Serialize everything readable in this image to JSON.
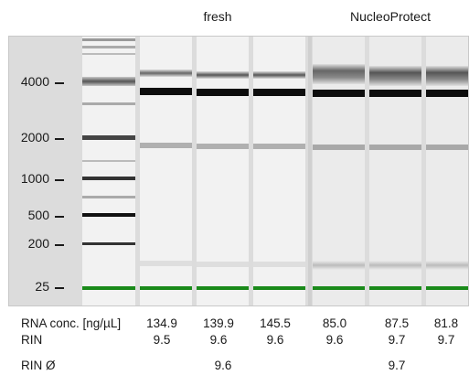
{
  "groups": [
    {
      "label": "fresh"
    },
    {
      "label": "NucleoProtect"
    }
  ],
  "ladder": {
    "ticks": [
      "4000",
      "2000",
      "1000",
      "500",
      "200",
      "25"
    ]
  },
  "colors": {
    "marker": "#1a8a1a",
    "band": "#111111",
    "gel_bg": "#dcdcdc"
  },
  "rows": {
    "rna_conc_label": "RNA conc. [ng/µL]",
    "rin_label": "RIN",
    "rin_avg_label": "RIN Ø",
    "samples": [
      {
        "conc": "134.9",
        "rin": "9.5"
      },
      {
        "conc": "139.9",
        "rin": "9.6"
      },
      {
        "conc": "145.5",
        "rin": "9.6"
      },
      {
        "conc": "85.0",
        "rin": "9.6"
      },
      {
        "conc": "87.5",
        "rin": "9.7"
      },
      {
        "conc": "81.8",
        "rin": "9.7"
      }
    ],
    "rin_avg": [
      "9.6",
      "9.7"
    ]
  }
}
